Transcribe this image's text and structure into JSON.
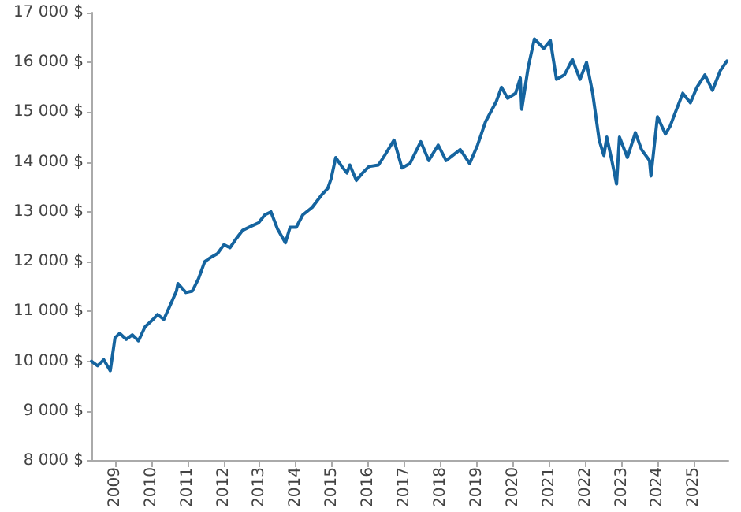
{
  "chart_data": {
    "type": "line",
    "grid": false,
    "marker": "none",
    "line_style": "solid",
    "xlim": [
      2008.35,
      2025.95
    ],
    "xticks": [
      2009,
      2010,
      2011,
      2012,
      2013,
      2014,
      2015,
      2016,
      2017,
      2018,
      2019,
      2020,
      2021,
      2022,
      2023,
      2024,
      2025
    ],
    "ylim": [
      8000,
      17000
    ],
    "yticks": [
      {
        "value": 8000,
        "label": "8 000 $"
      },
      {
        "value": 9000,
        "label": "9 000 $"
      },
      {
        "value": 10000,
        "label": "10 000 $"
      },
      {
        "value": 11000,
        "label": "11 000 $"
      },
      {
        "value": 12000,
        "label": "12 000 $"
      },
      {
        "value": 13000,
        "label": "13 000 $"
      },
      {
        "value": 14000,
        "label": "14 000 $"
      },
      {
        "value": 15000,
        "label": "15 000 $"
      },
      {
        "value": 16000,
        "label": "16 000 $"
      },
      {
        "value": 17000,
        "label": "17 000 $"
      }
    ],
    "series": [
      {
        "color": "#15649f",
        "x": [
          2008.35,
          2008.52,
          2008.69,
          2008.87,
          2009.0,
          2009.13,
          2009.31,
          2009.48,
          2009.65,
          2009.83,
          2010.05,
          2010.18,
          2010.35,
          2010.53,
          2010.7,
          2010.74,
          2010.96,
          2011.14,
          2011.31,
          2011.48,
          2011.66,
          2011.83,
          2012.01,
          2012.18,
          2012.36,
          2012.53,
          2012.7,
          2012.97,
          2013.14,
          2013.31,
          2013.49,
          2013.71,
          2013.84,
          2014.01,
          2014.19,
          2014.45,
          2014.71,
          2014.88,
          2014.97,
          2015.1,
          2015.27,
          2015.41,
          2015.49,
          2015.67,
          2015.84,
          2016.02,
          2016.28,
          2016.45,
          2016.71,
          2016.93,
          2017.15,
          2017.45,
          2017.67,
          2017.93,
          2018.15,
          2018.54,
          2018.8,
          2019.02,
          2019.24,
          2019.54,
          2019.68,
          2019.85,
          2020.07,
          2020.2,
          2020.24,
          2020.42,
          2020.59,
          2020.85,
          2021.03,
          2021.2,
          2021.42,
          2021.64,
          2021.85,
          2022.03,
          2022.2,
          2022.38,
          2022.51,
          2022.59,
          2022.73,
          2022.86,
          2022.94,
          2023.16,
          2023.38,
          2023.55,
          2023.77,
          2023.81,
          2023.99,
          2024.21,
          2024.34,
          2024.47,
          2024.69,
          2024.9,
          2025.08,
          2025.3,
          2025.51,
          2025.73,
          2025.91
        ],
        "values": [
          10000,
          9910,
          10030,
          9810,
          10470,
          10560,
          10440,
          10530,
          10410,
          10690,
          10840,
          10940,
          10840,
          11130,
          11410,
          11560,
          11380,
          11410,
          11660,
          12000,
          12090,
          12160,
          12340,
          12280,
          12470,
          12630,
          12690,
          12780,
          12940,
          13000,
          12660,
          12380,
          12690,
          12690,
          12940,
          13090,
          13340,
          13470,
          13660,
          14090,
          13910,
          13780,
          13940,
          13630,
          13780,
          13910,
          13940,
          14130,
          14440,
          13880,
          13970,
          14410,
          14030,
          14340,
          14030,
          14250,
          13970,
          14340,
          14810,
          15220,
          15500,
          15280,
          15380,
          15690,
          15060,
          15910,
          16470,
          16280,
          16440,
          15660,
          15750,
          16060,
          15660,
          16000,
          15380,
          14440,
          14130,
          14500,
          14030,
          13560,
          14500,
          14090,
          14590,
          14250,
          14030,
          13720,
          14910,
          14560,
          14720,
          14970,
          15380,
          15190,
          15500,
          15750,
          15440,
          15840,
          16030
        ]
      }
    ]
  }
}
